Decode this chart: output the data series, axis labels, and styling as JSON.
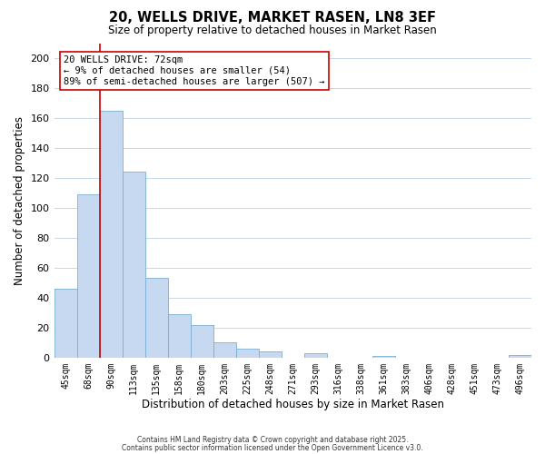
{
  "title": "20, WELLS DRIVE, MARKET RASEN, LN8 3EF",
  "subtitle": "Size of property relative to detached houses in Market Rasen",
  "xlabel": "Distribution of detached houses by size in Market Rasen",
  "ylabel": "Number of detached properties",
  "bar_labels": [
    "45sqm",
    "68sqm",
    "90sqm",
    "113sqm",
    "135sqm",
    "158sqm",
    "180sqm",
    "203sqm",
    "225sqm",
    "248sqm",
    "271sqm",
    "293sqm",
    "316sqm",
    "338sqm",
    "361sqm",
    "383sqm",
    "406sqm",
    "428sqm",
    "451sqm",
    "473sqm",
    "496sqm"
  ],
  "bar_values": [
    46,
    109,
    165,
    124,
    53,
    29,
    22,
    10,
    6,
    4,
    0,
    3,
    0,
    0,
    1,
    0,
    0,
    0,
    0,
    0,
    2
  ],
  "bar_color": "#c6d9f1",
  "bar_edge_color": "#7bafd4",
  "ylim": [
    0,
    210
  ],
  "yticks": [
    0,
    20,
    40,
    60,
    80,
    100,
    120,
    140,
    160,
    180,
    200
  ],
  "property_line_color": "#cc0000",
  "property_line_bar_index": 1,
  "annotation_title": "20 WELLS DRIVE: 72sqm",
  "annotation_line1": "← 9% of detached houses are smaller (54)",
  "annotation_line2": "89% of semi-detached houses are larger (507) →",
  "annotation_box_color": "#ffffff",
  "annotation_box_edge": "#cc0000",
  "footer1": "Contains HM Land Registry data © Crown copyright and database right 2025.",
  "footer2": "Contains public sector information licensed under the Open Government Licence v3.0.",
  "background_color": "#ffffff",
  "grid_color": "#c8d8ec"
}
